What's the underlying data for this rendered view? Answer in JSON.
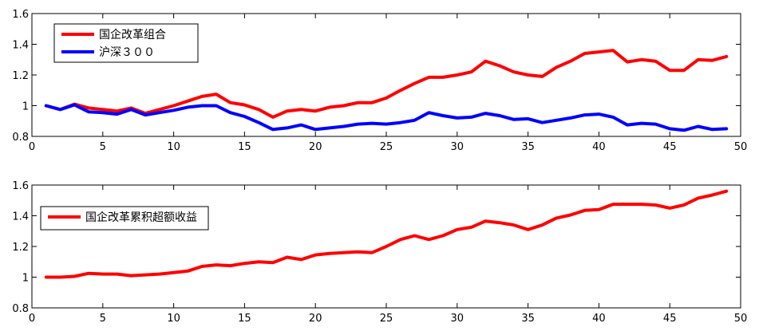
{
  "chart_data": [
    {
      "type": "line",
      "title": "",
      "xlabel": "",
      "ylabel": "",
      "xlim": [
        0,
        50
      ],
      "ylim": [
        0.8,
        1.6
      ],
      "xticks": [
        0,
        5,
        10,
        15,
        20,
        25,
        30,
        35,
        40,
        45,
        50
      ],
      "xtick_labels": [
        "0",
        "5",
        "10",
        "15",
        "20",
        "25",
        "30",
        "35",
        "40",
        "45",
        "50"
      ],
      "yticks": [
        0.8,
        1.0,
        1.2,
        1.4,
        1.6
      ],
      "ytick_labels": [
        "0.8",
        "1",
        "1.2",
        "1.4",
        "1.6"
      ],
      "grid": false,
      "legend_position": "top-left",
      "x": [
        1,
        2,
        3,
        4,
        5,
        6,
        7,
        8,
        9,
        10,
        11,
        12,
        13,
        14,
        15,
        16,
        17,
        18,
        19,
        20,
        21,
        22,
        23,
        24,
        25,
        26,
        27,
        28,
        29,
        30,
        31,
        32,
        33,
        34,
        35,
        36,
        37,
        38,
        39,
        40,
        41,
        42,
        43,
        44,
        45,
        46,
        47,
        48,
        49
      ],
      "series": [
        {
          "name": "国企改革组合",
          "color": "#ff0000",
          "values": [
            1.0,
            0.975,
            1.01,
            0.985,
            0.975,
            0.965,
            0.985,
            0.95,
            0.975,
            1.0,
            1.03,
            1.06,
            1.075,
            1.02,
            1.005,
            0.975,
            0.925,
            0.965,
            0.975,
            0.965,
            0.99,
            1.0,
            1.02,
            1.02,
            1.05,
            1.1,
            1.145,
            1.185,
            1.185,
            1.2,
            1.22,
            1.29,
            1.26,
            1.22,
            1.2,
            1.19,
            1.25,
            1.29,
            1.34,
            1.35,
            1.36,
            1.285,
            1.3,
            1.29,
            1.23,
            1.23,
            1.3,
            1.295,
            1.32
          ]
        },
        {
          "name": "沪深３００",
          "color": "#0000ff",
          "values": [
            1.0,
            0.975,
            1.005,
            0.96,
            0.955,
            0.945,
            0.975,
            0.94,
            0.955,
            0.97,
            0.99,
            1.0,
            1.0,
            0.955,
            0.93,
            0.89,
            0.845,
            0.855,
            0.875,
            0.845,
            0.855,
            0.865,
            0.88,
            0.885,
            0.88,
            0.89,
            0.905,
            0.955,
            0.935,
            0.92,
            0.925,
            0.95,
            0.935,
            0.91,
            0.915,
            0.89,
            0.905,
            0.92,
            0.94,
            0.945,
            0.925,
            0.875,
            0.885,
            0.88,
            0.85,
            0.84,
            0.865,
            0.845,
            0.85
          ]
        }
      ]
    },
    {
      "type": "line",
      "title": "",
      "xlabel": "",
      "ylabel": "",
      "xlim": [
        0,
        50
      ],
      "ylim": [
        0.8,
        1.6
      ],
      "xticks": [
        0,
        5,
        10,
        15,
        20,
        25,
        30,
        35,
        40,
        45,
        50
      ],
      "xtick_labels": [
        "0",
        "5",
        "10",
        "15",
        "20",
        "25",
        "30",
        "35",
        "40",
        "45",
        "50"
      ],
      "yticks": [
        0.8,
        1.0,
        1.2,
        1.4,
        1.6
      ],
      "ytick_labels": [
        "0.8",
        "1",
        "1.2",
        "1.4",
        "1.6"
      ],
      "grid": false,
      "legend_position": "top-left",
      "x": [
        1,
        2,
        3,
        4,
        5,
        6,
        7,
        8,
        9,
        10,
        11,
        12,
        13,
        14,
        15,
        16,
        17,
        18,
        19,
        20,
        21,
        22,
        23,
        24,
        25,
        26,
        27,
        28,
        29,
        30,
        31,
        32,
        33,
        34,
        35,
        36,
        37,
        38,
        39,
        40,
        41,
        42,
        43,
        44,
        45,
        46,
        47,
        48,
        49
      ],
      "series": [
        {
          "name": "国企改革累积超额收益",
          "color": "#ff0000",
          "values": [
            1.0,
            1.0,
            1.005,
            1.025,
            1.02,
            1.02,
            1.01,
            1.015,
            1.02,
            1.03,
            1.04,
            1.07,
            1.08,
            1.075,
            1.09,
            1.1,
            1.095,
            1.13,
            1.115,
            1.145,
            1.155,
            1.16,
            1.165,
            1.16,
            1.2,
            1.245,
            1.27,
            1.245,
            1.27,
            1.31,
            1.325,
            1.365,
            1.355,
            1.34,
            1.31,
            1.34,
            1.385,
            1.405,
            1.435,
            1.44,
            1.475,
            1.475,
            1.475,
            1.47,
            1.45,
            1.47,
            1.515,
            1.535,
            1.56
          ]
        }
      ]
    }
  ]
}
